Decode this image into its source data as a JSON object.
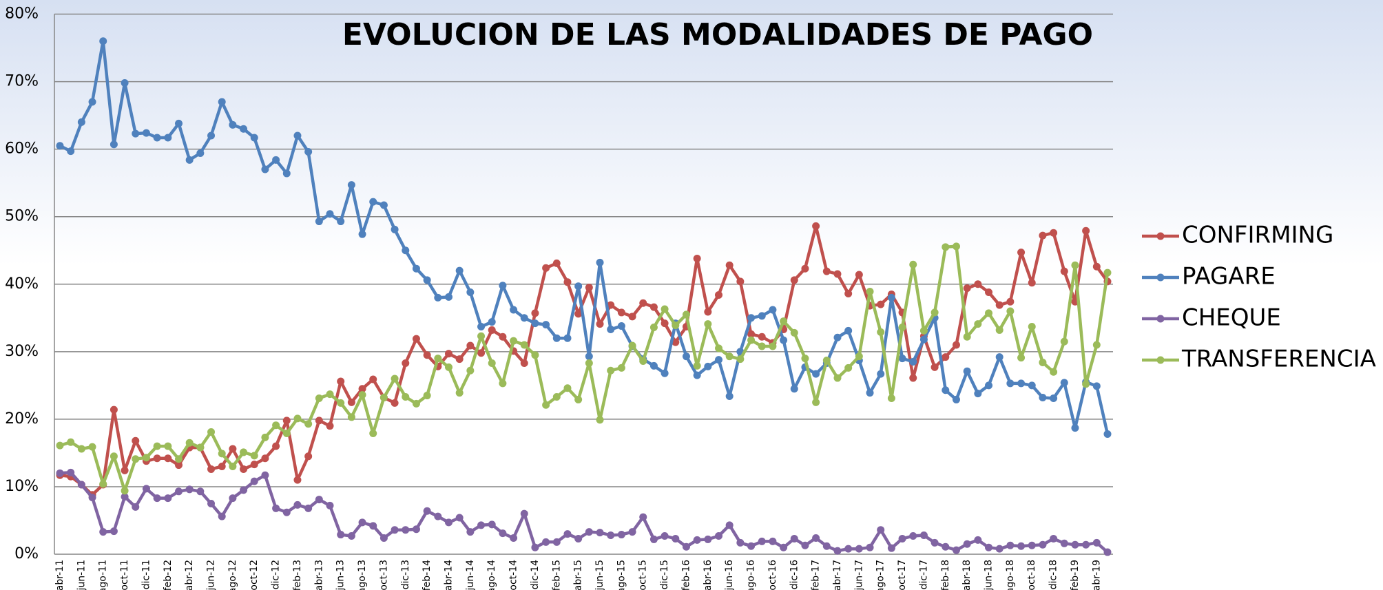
{
  "chart_data": {
    "type": "line",
    "title": "EVOLUCION DE LAS MODALIDADES DE PAGO",
    "categories": [
      "abr-11",
      null,
      "jun-11",
      null,
      "ago-11",
      null,
      "oct-11",
      null,
      "dic-11",
      null,
      "feb-12",
      null,
      "abr-12",
      null,
      "jun-12",
      null,
      "ago-12",
      null,
      "oct-12",
      null,
      "dic-12",
      null,
      "feb-13",
      null,
      "abr-13",
      null,
      "jun-13",
      null,
      "ago-13",
      null,
      "oct-13",
      null,
      "dic-13",
      null,
      "feb-14",
      null,
      "abr-14",
      null,
      "jun-14",
      null,
      "ago-14",
      null,
      "oct-14",
      null,
      "dic-14",
      null,
      "feb-15",
      null,
      "abr-15",
      null,
      "jun-15",
      null,
      "ago-15",
      null,
      "oct-15",
      null,
      "dic-15",
      null,
      "feb-16",
      null,
      "abr-16",
      null,
      "jun-16",
      null,
      "ago-16",
      null,
      "oct-16",
      null,
      "dic-16",
      null,
      "feb-17",
      null,
      "abr-17",
      null,
      "jun-17",
      null,
      "ago-17",
      null,
      "oct-17",
      null,
      "dic-17",
      null,
      "feb-18",
      null,
      "abr-18",
      null,
      "jun-18",
      null,
      "ago-18",
      null,
      "oct-18",
      null,
      "dic-18",
      null,
      "feb-19",
      null,
      "abr-19",
      null
    ],
    "series": [
      {
        "name": "CONFIRMING",
        "color": "#c0504d",
        "values": [
          11.7,
          11.5,
          10.3,
          8.8,
          10.3,
          21.4,
          12.4,
          16.8,
          13.8,
          14.2,
          14.2,
          13.2,
          15.8,
          15.8,
          12.6,
          13,
          15.6,
          12.6,
          13.3,
          14.2,
          16,
          19.8,
          11,
          14.5,
          19.8,
          19,
          25.6,
          22.5,
          24.5,
          25.9,
          23.2,
          22.4,
          28.3,
          31.9,
          29.5,
          27.8,
          29.7,
          28.9,
          30.9,
          29.8,
          33.2,
          32.2,
          30.1,
          28.3,
          35.7,
          42.4,
          43.1,
          40.3,
          35.6,
          39.5,
          34.1,
          36.9,
          35.8,
          35.2,
          37.2,
          36.6,
          34.2,
          31.4,
          33.7,
          43.8,
          35.9,
          38.4,
          42.8,
          40.4,
          32.6,
          32.2,
          31.3,
          33.3,
          40.6,
          42.3,
          48.6,
          41.9,
          41.5,
          38.6,
          41.4,
          36.8,
          37,
          38.5,
          35.8,
          26.1,
          32.3,
          27.7,
          29.2,
          31,
          39.4,
          40,
          38.8,
          36.9,
          37.4,
          44.7,
          40.2,
          47.2,
          47.6,
          41.9,
          37.4,
          47.9,
          42.6,
          40.4
        ]
      },
      {
        "name": "PAGARE",
        "color": "#4f81bd",
        "values": [
          60.5,
          59.7,
          64,
          67,
          76,
          60.7,
          69.8,
          62.3,
          62.4,
          61.7,
          61.7,
          63.8,
          58.4,
          59.4,
          62,
          67,
          63.6,
          63,
          61.7,
          57,
          58.4,
          56.4,
          62,
          59.6,
          49.3,
          50.4,
          49.3,
          54.7,
          47.4,
          52.2,
          51.7,
          48.1,
          45,
          42.3,
          40.6,
          38,
          38.1,
          42,
          38.8,
          33.7,
          34.4,
          39.8,
          36.2,
          35,
          34.2,
          34,
          32,
          32,
          39.7,
          29.3,
          43.2,
          33.3,
          33.8,
          30.8,
          28.9,
          27.9,
          26.8,
          34.2,
          29.3,
          26.5,
          27.8,
          28.8,
          23.4,
          30,
          35,
          35.3,
          36.2,
          31.7,
          24.5,
          27.7,
          26.7,
          28.3,
          32.1,
          33.1,
          28.7,
          23.9,
          26.7,
          38,
          29,
          28.5,
          31.8,
          35,
          24.3,
          22.9,
          27.1,
          23.8,
          25,
          29.2,
          25.3,
          25.3,
          25,
          23.2,
          23.1,
          25.4,
          18.7,
          25.5,
          24.9,
          17.8
        ]
      },
      {
        "name": "CHEQUE",
        "color": "#8064a2",
        "values": [
          12,
          12.1,
          10.3,
          8.4,
          3.3,
          3.4,
          8.5,
          7,
          9.7,
          8.3,
          8.3,
          9.3,
          9.6,
          9.3,
          7.5,
          5.6,
          8.3,
          9.5,
          10.8,
          11.7,
          6.8,
          6.2,
          7.3,
          6.8,
          8.1,
          7.2,
          2.9,
          2.7,
          4.7,
          4.2,
          2.4,
          3.6,
          3.6,
          3.7,
          6.4,
          5.6,
          4.7,
          5.4,
          3.3,
          4.3,
          4.4,
          3.1,
          2.4,
          6,
          1,
          1.8,
          1.8,
          3,
          2.3,
          3.3,
          3.2,
          2.8,
          2.9,
          3.3,
          5.5,
          2.2,
          2.7,
          2.3,
          1.1,
          2.1,
          2.2,
          2.7,
          4.3,
          1.7,
          1.2,
          1.9,
          1.9,
          1,
          2.3,
          1.3,
          2.4,
          1.2,
          0.5,
          0.8,
          0.8,
          1,
          3.6,
          0.9,
          2.3,
          2.7,
          2.8,
          1.7,
          1.1,
          0.6,
          1.5,
          2.1,
          1,
          0.8,
          1.3,
          1.2,
          1.3,
          1.4,
          2.3,
          1.6,
          1.4,
          1.4,
          1.7,
          0.3
        ]
      },
      {
        "name": "TRANSFERENCIA",
        "color": "#9bbb59",
        "values": [
          16.1,
          16.6,
          15.6,
          15.9,
          10.4,
          14.5,
          9.4,
          14.1,
          14.3,
          16,
          16,
          14.1,
          16.5,
          15.8,
          18.1,
          14.9,
          13,
          15.1,
          14.6,
          17.3,
          19.1,
          17.9,
          20.1,
          19.3,
          23.1,
          23.7,
          22.4,
          20.3,
          23.6,
          17.9,
          23.2,
          26,
          23.3,
          22.3,
          23.5,
          29,
          27.7,
          23.9,
          27.2,
          32.3,
          28.3,
          25.3,
          31.6,
          31,
          29.5,
          22.1,
          23.3,
          24.6,
          22.9,
          28.3,
          19.9,
          27.2,
          27.6,
          30.9,
          28.6,
          33.6,
          36.3,
          33.9,
          35.5,
          27.9,
          34.1,
          30.5,
          29.3,
          28.9,
          31.7,
          30.8,
          30.8,
          34.5,
          32.8,
          29,
          22.5,
          28.7,
          26.1,
          27.6,
          29.3,
          38.9,
          32.9,
          23.1,
          33.6,
          42.9,
          33.1,
          35.8,
          45.5,
          45.6,
          32.2,
          34.1,
          35.7,
          33.2,
          36,
          29.1,
          33.7,
          28.4,
          27,
          31.5,
          42.8,
          25.2,
          31,
          41.7
        ]
      }
    ],
    "ylim": [
      0,
      80
    ],
    "yticks": [
      {
        "value": 0,
        "label": "0%"
      },
      {
        "value": 10,
        "label": "10%"
      },
      {
        "value": 20,
        "label": "20%"
      },
      {
        "value": 30,
        "label": "30%"
      },
      {
        "value": 40,
        "label": "40%"
      },
      {
        "value": 50,
        "label": "50%"
      },
      {
        "value": 60,
        "label": "60%"
      },
      {
        "value": 70,
        "label": "70%"
      },
      {
        "value": 80,
        "label": "80%"
      }
    ],
    "grid": true,
    "legend": "right"
  }
}
